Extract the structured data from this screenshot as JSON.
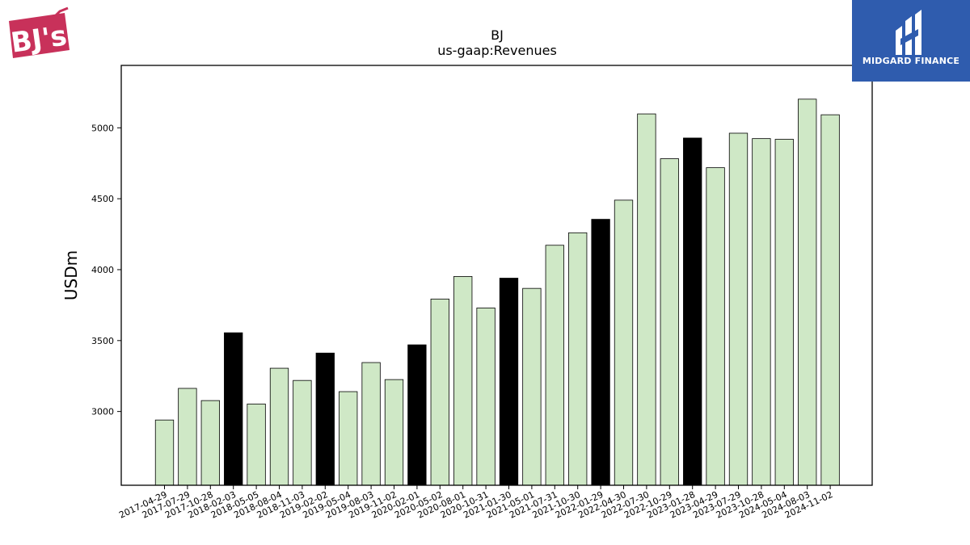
{
  "logos": {
    "left_text": "BJ's",
    "right_text": "MIDGARD FINANCE"
  },
  "colors": {
    "quarter_bar": "#cfe8c6",
    "fiscal_year_end_bar": "#000000",
    "bar_edge": "#000000",
    "midgard_bg": "#2f5cae",
    "bjs_red": "#c8315a"
  },
  "chart_data": {
    "type": "bar",
    "title": "BJ",
    "subtitle": "us-gaap:Revenues",
    "xlabel": "",
    "ylabel": "USDm",
    "ylim": [
      2480,
      5440
    ],
    "yticks": [
      3000,
      3500,
      4000,
      4500,
      5000
    ],
    "grid": false,
    "legend": "none",
    "categories": [
      "2017-04-29",
      "2017-07-29",
      "2017-10-28",
      "2018-02-03",
      "2018-05-05",
      "2018-08-04",
      "2018-11-03",
      "2019-02-02",
      "2019-05-04",
      "2019-08-03",
      "2019-11-02",
      "2020-02-01",
      "2020-05-02",
      "2020-08-01",
      "2020-10-31",
      "2021-01-30",
      "2021-05-01",
      "2021-07-31",
      "2021-10-30",
      "2022-01-29",
      "2022-04-30",
      "2022-07-30",
      "2022-10-29",
      "2023-01-28",
      "2023-04-29",
      "2023-07-29",
      "2023-10-28",
      "2024-05-04",
      "2024-08-03",
      "2024-11-02"
    ],
    "values": [
      2940,
      3163,
      3077,
      3555,
      3053,
      3305,
      3219,
      3412,
      3140,
      3345,
      3225,
      3470,
      3793,
      3952,
      3730,
      3940,
      3868,
      4172,
      4260,
      4355,
      4490,
      5098,
      4782,
      4928,
      4719,
      4962,
      4924,
      4919,
      5202,
      5092
    ],
    "highlight_indices": [
      3,
      7,
      11,
      15,
      19,
      23
    ]
  }
}
